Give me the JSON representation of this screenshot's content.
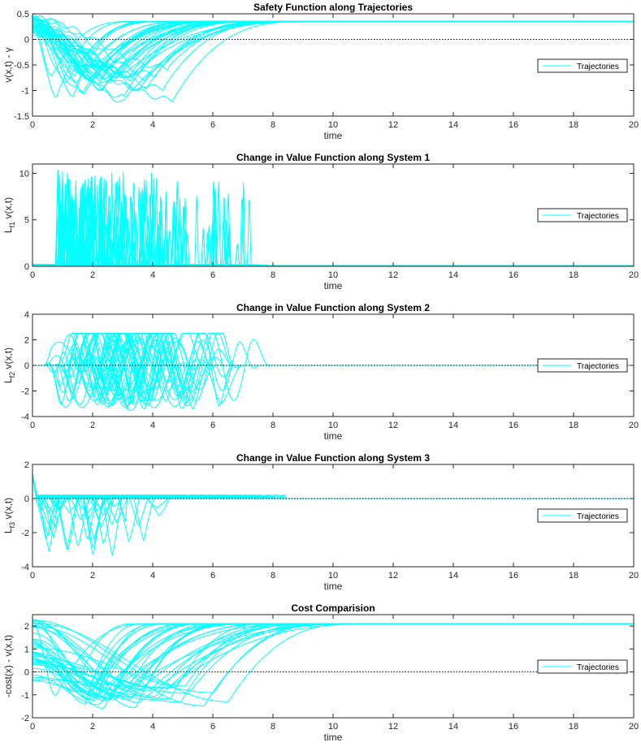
{
  "figure": {
    "background": "#ffffff",
    "trajectory_color": "#00ffff",
    "axis_color": "#262626"
  },
  "chart_data": [
    {
      "type": "line",
      "title": "Safety Function along Trajectories",
      "xlabel": "time",
      "ylabel": "v(x,t) - γ",
      "xlim": [
        0,
        20
      ],
      "ylim": [
        -1.5,
        0.5
      ],
      "xticks": [
        "0",
        "2",
        "4",
        "6",
        "8",
        "10",
        "12",
        "14",
        "16",
        "18",
        "20"
      ],
      "yticks": [
        "0.5",
        "0",
        "-0.5",
        "-1",
        "-1.5"
      ],
      "ytick_values": [
        0.5,
        0,
        -0.5,
        -1,
        -1.5
      ],
      "reference_line": 0,
      "legend": {
        "label": "Trajectories",
        "location": "east"
      },
      "series_name": "Trajectories",
      "num_trajectories": 40,
      "t_end_range": [
        1.8,
        8.0
      ],
      "steady_value": 0.35,
      "dip_min_range": [
        -1.22,
        -0.55
      ]
    },
    {
      "type": "line",
      "title": "Change in Value Function along System 1",
      "xlabel": "time",
      "ylabel": "L f1 v(x,t)",
      "ylabel_main": "L",
      "ylabel_sub": "f1",
      "ylabel_rest": " v(x,t)",
      "xlim": [
        0,
        20
      ],
      "ylim": [
        0,
        11
      ],
      "xticks": [
        "0",
        "2",
        "4",
        "6",
        "8",
        "10",
        "12",
        "14",
        "16",
        "18",
        "20"
      ],
      "yticks": [
        "10",
        "5",
        "0"
      ],
      "ytick_values": [
        10,
        5,
        0
      ],
      "reference_line": 0,
      "legend": {
        "label": "Trajectories",
        "location": "east"
      },
      "series_name": "Trajectories",
      "num_trajectories": 40,
      "t_end_range": [
        0.8,
        8.0
      ],
      "spike_max_range": [
        2.5,
        10.8
      ]
    },
    {
      "type": "line",
      "title": "Change in Value Function along System 2",
      "xlabel": "time",
      "ylabel": "L f2 v(x,t)",
      "ylabel_main": "L",
      "ylabel_sub": "f2",
      "ylabel_rest": " v(x,t)",
      "xlim": [
        0,
        20
      ],
      "ylim": [
        -4,
        4
      ],
      "xticks": [
        "0",
        "2",
        "4",
        "6",
        "8",
        "10",
        "12",
        "14",
        "16",
        "18",
        "20"
      ],
      "yticks": [
        "4",
        "2",
        "0",
        "-2",
        "-4"
      ],
      "ytick_values": [
        4,
        2,
        0,
        -2,
        -4
      ],
      "reference_line": 0,
      "legend": {
        "label": "Trajectories",
        "location": "east"
      },
      "series_name": "Trajectories",
      "num_trajectories": 40,
      "t_end_range": [
        1.0,
        8.0
      ],
      "amplitude_range": [
        -3.6,
        2.5
      ]
    },
    {
      "type": "line",
      "title": "Change in Value Function along System 3",
      "xlabel": "time",
      "ylabel": "L f3 v(x,t)",
      "ylabel_main": "L",
      "ylabel_sub": "f3",
      "ylabel_rest": " v(x,t)",
      "xlim": [
        0,
        20
      ],
      "ylim": [
        -4,
        2
      ],
      "xticks": [
        "0",
        "2",
        "4",
        "6",
        "8",
        "10",
        "12",
        "14",
        "16",
        "18",
        "20"
      ],
      "yticks": [
        "2",
        "0",
        "-2",
        "-4"
      ],
      "ytick_values": [
        2,
        0,
        -2,
        -4
      ],
      "reference_line": 0,
      "legend": {
        "label": "Trajectories",
        "location": "east"
      },
      "series_name": "Trajectories",
      "num_trajectories": 40,
      "t_end_range": [
        0.3,
        8.5
      ],
      "dip_min_range": [
        -3.5,
        -0.5
      ],
      "initial_spike": 1.3
    },
    {
      "type": "line",
      "title": "Cost Comparision",
      "xlabel": "time",
      "ylabel": "-cost(x) - v(x,t)",
      "xlim": [
        0,
        20
      ],
      "ylim": [
        -2,
        2.5
      ],
      "xticks": [
        "0",
        "2",
        "4",
        "6",
        "8",
        "10",
        "12",
        "14",
        "16",
        "18",
        "20"
      ],
      "yticks": [
        "2",
        "1",
        "0",
        "-1",
        "-2"
      ],
      "ytick_values": [
        2,
        1,
        0,
        -1,
        -2
      ],
      "reference_line": 0,
      "legend": {
        "label": "Trajectories",
        "location": "east"
      },
      "series_name": "Trajectories",
      "num_trajectories": 40,
      "t_end_range": [
        2.0,
        10.5
      ],
      "steady_value": 2.1,
      "dip_min_range": [
        -1.6,
        -0.6
      ]
    }
  ]
}
